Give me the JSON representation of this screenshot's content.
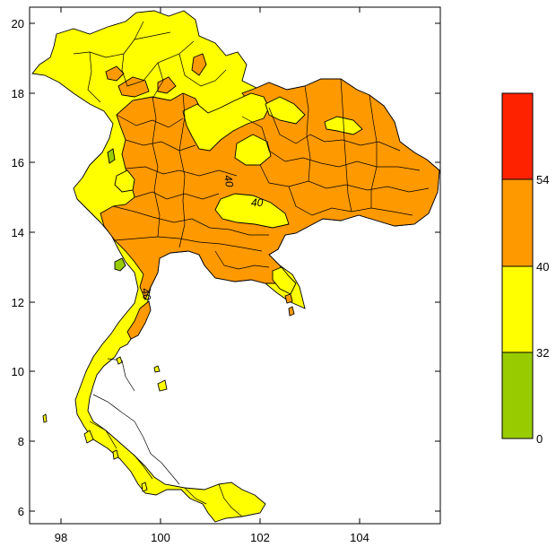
{
  "map": {
    "x_ticks": [
      "98",
      "100",
      "102",
      "104"
    ],
    "y_ticks": [
      "20",
      "18",
      "16",
      "14",
      "12",
      "10",
      "8",
      "6"
    ],
    "contour_labels": [
      "40",
      "40",
      "40"
    ]
  },
  "legend": {
    "labels": [
      "54",
      "40",
      "32",
      "0"
    ],
    "colors": [
      "#ff2200",
      "#ff9900",
      "#ffff00",
      "#99cc00"
    ]
  },
  "colors": {
    "yellow_zone": "#ffff00",
    "orange_zone": "#ff9900",
    "green_zone": "#99cc00",
    "red_zone": "#ff2200"
  }
}
